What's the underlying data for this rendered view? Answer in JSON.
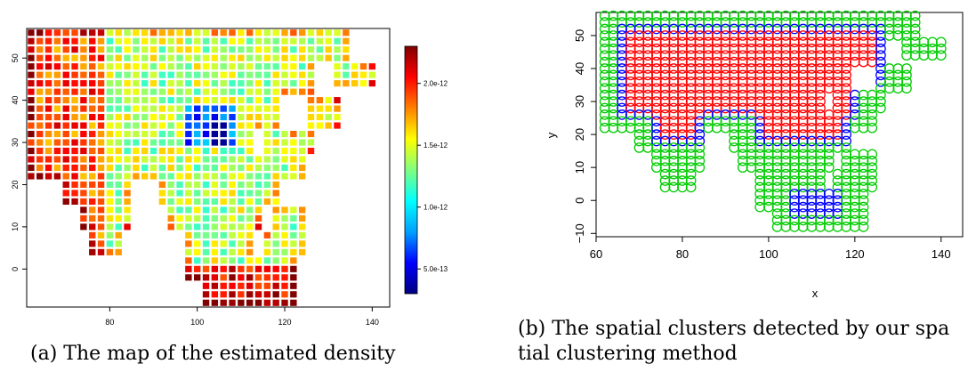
{
  "chart_data": [
    {
      "type": "heatmap",
      "title": "",
      "xlabel": "",
      "ylabel": "",
      "xlim": [
        61,
        144
      ],
      "ylim": [
        -9,
        57
      ],
      "x_ticks": [
        "80",
        "100",
        "120",
        "140"
      ],
      "y_ticks": [
        "0",
        "10",
        "20",
        "30",
        "40",
        "50"
      ],
      "colorbar": {
        "min": 3e-13,
        "max": 2.3e-12,
        "ticks": [
          "5.0e-13",
          "1.0e-12",
          "1.5e-12",
          "2.0e-12"
        ],
        "colors": [
          "#000080",
          "#0000ff",
          "#00a0ff",
          "#00ffff",
          "#80ff80",
          "#ffff00",
          "#ff8000",
          "#ff0000",
          "#800000"
        ]
      },
      "grid_step": 2,
      "rows": [
        {
          "y": 56,
          "x_start": 62,
          "x_end": 122,
          "density": "high-west"
        },
        {
          "y": 54,
          "x_start": 62,
          "x_end": 132,
          "density": "mixed"
        },
        {
          "y": 26,
          "x_start": 62,
          "x_end": 126,
          "density": "high-west"
        },
        {
          "y": 20,
          "x_start": 72,
          "x_end": 122,
          "density": "mixed"
        }
      ]
    },
    {
      "type": "scatter",
      "title": "",
      "xlabel": "x",
      "ylabel": "y",
      "xlim": [
        60,
        145
      ],
      "ylim": [
        -11,
        57
      ],
      "x_ticks": [
        "60",
        "80",
        "100",
        "120",
        "140"
      ],
      "y_ticks": [
        "−10",
        "0",
        "10",
        "20",
        "30",
        "40",
        "50"
      ],
      "grid_step": 2,
      "series": [
        {
          "color": "#ff0000"
        },
        {
          "color": "#0000ff"
        },
        {
          "color": "#00cc00"
        }
      ]
    }
  ],
  "captions": {
    "a": "(a) The map of the estimated density",
    "b": "(b) The spatial clusters detected by our spa tial clustering method"
  }
}
